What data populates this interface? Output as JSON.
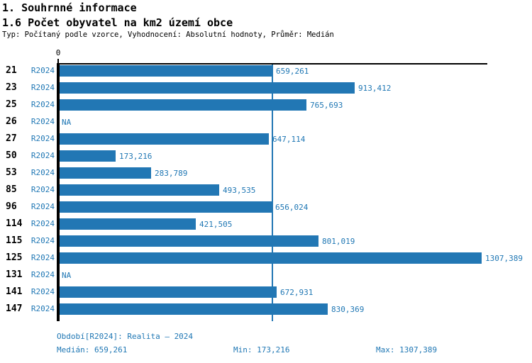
{
  "header": {
    "title": "1. Souhrnné informace",
    "subtitle": "1.6 Počet obyvatel na km2 území obce",
    "description": "Typ: Počítaný podle vzorce, Vyhodnocení: Absolutní hodnoty, Průměr: Medián"
  },
  "chart_data": {
    "type": "bar",
    "orientation": "horizontal",
    "title": "1.6 Počet obyvatel na km2 území obce",
    "xlabel": "",
    "ylabel": "",
    "xlim": [
      0,
      1307.389
    ],
    "zero_tick_label": "0",
    "bar_color": "#2277b4",
    "text_color": "#1f77b4",
    "median_value": 659.261,
    "na_text": "NA",
    "categories": [
      "21",
      "23",
      "25",
      "26",
      "27",
      "50",
      "53",
      "85",
      "96",
      "114",
      "115",
      "125",
      "131",
      "141",
      "147"
    ],
    "rows": [
      {
        "category": "21",
        "period": "R2024",
        "value": 659.261,
        "value_label": "659,261"
      },
      {
        "category": "23",
        "period": "R2024",
        "value": 913.412,
        "value_label": "913,412"
      },
      {
        "category": "25",
        "period": "R2024",
        "value": 765.693,
        "value_label": "765,693"
      },
      {
        "category": "26",
        "period": "R2024",
        "value": null,
        "value_label": "NA"
      },
      {
        "category": "27",
        "period": "R2024",
        "value": 647.114,
        "value_label": "647,114"
      },
      {
        "category": "50",
        "period": "R2024",
        "value": 173.216,
        "value_label": "173,216"
      },
      {
        "category": "53",
        "period": "R2024",
        "value": 283.789,
        "value_label": "283,789"
      },
      {
        "category": "85",
        "period": "R2024",
        "value": 493.535,
        "value_label": "493,535"
      },
      {
        "category": "96",
        "period": "R2024",
        "value": 656.024,
        "value_label": "656,024"
      },
      {
        "category": "114",
        "period": "R2024",
        "value": 421.505,
        "value_label": "421,505"
      },
      {
        "category": "115",
        "period": "R2024",
        "value": 801.019,
        "value_label": "801,019"
      },
      {
        "category": "125",
        "period": "R2024",
        "value": 1307.389,
        "value_label": "1307,389"
      },
      {
        "category": "131",
        "period": "R2024",
        "value": null,
        "value_label": "NA"
      },
      {
        "category": "141",
        "period": "R2024",
        "value": 672.931,
        "value_label": "672,931"
      },
      {
        "category": "147",
        "period": "R2024",
        "value": 830.369,
        "value_label": "830,369"
      }
    ]
  },
  "footer": {
    "period_label": "Období[R2024]: Realita – 2024",
    "median_label": "Medián: 659,261",
    "min_label": "Min: 173,216",
    "max_label": "Max: 1307,389"
  }
}
